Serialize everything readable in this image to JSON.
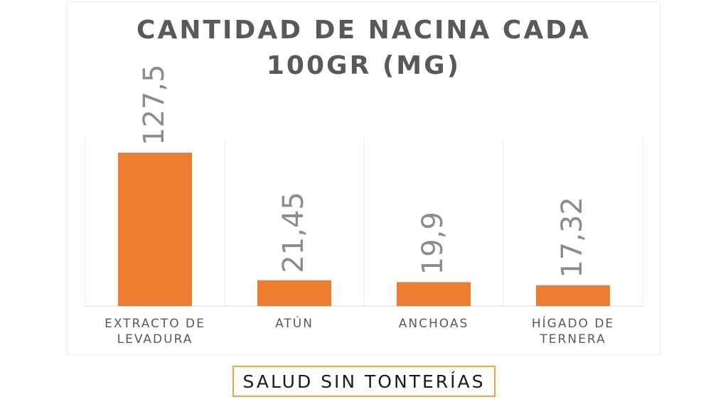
{
  "chart_data": {
    "type": "bar",
    "title": "CANTIDAD DE NACINA CADA 100GR (MG)",
    "title_lines": [
      "CANTIDAD DE NACINA CADA",
      "100GR (MG)"
    ],
    "categories": [
      [
        "EXTRACTO DE",
        "LEVADURA"
      ],
      [
        "ATÚN"
      ],
      [
        "ANCHOAS"
      ],
      [
        "HÍGADO DE",
        "TERNERA"
      ]
    ],
    "values": [
      127.5,
      21.45,
      19.9,
      17.32
    ],
    "data_labels": [
      "127,5",
      "21,45",
      "19,9",
      "17,32"
    ],
    "bar_color": "#ed7d31",
    "ylim": [
      0,
      140
    ],
    "grid": "vertical separators",
    "legend": "none"
  },
  "footer": {
    "label": "SALUD SIN TONTERÍAS",
    "border_color": "#f2a53b"
  }
}
